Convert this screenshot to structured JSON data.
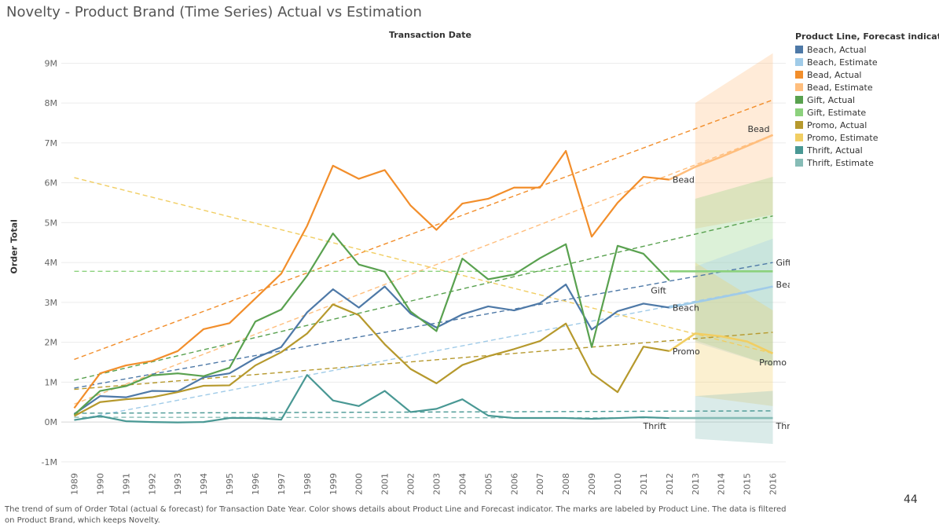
{
  "page": {
    "title": "Novelty - Product Brand (Time Series) Actual vs Estimation",
    "caption": "The trend of sum of Order Total (actual & forecast)  for Transaction Date Year.  Color shows details about Product Line and Forecast indicator.  The marks are labeled by Product Line. The data is filtered on Product Brand, which keeps Novelty.",
    "page_number": "44"
  },
  "chart_data": {
    "type": "line",
    "top_axis_title": "Transaction Date",
    "ylabel": "Order Total",
    "ylim": [
      -1.2,
      9.6
    ],
    "yticks": [
      -1,
      0,
      1,
      2,
      3,
      4,
      5,
      6,
      7,
      8,
      9
    ],
    "ytick_labels": [
      "-1M",
      "0M",
      "1M",
      "2M",
      "3M",
      "4M",
      "5M",
      "6M",
      "7M",
      "8M",
      "9M"
    ],
    "x": [
      1989,
      1990,
      1991,
      1992,
      1993,
      1994,
      1995,
      1996,
      1997,
      1998,
      1999,
      2000,
      2001,
      2002,
      2003,
      2004,
      2005,
      2006,
      2007,
      2008,
      2009,
      2010,
      2011,
      2012,
      2013,
      2014,
      2015,
      2016
    ],
    "xtick_labels": [
      "1989",
      "1990",
      "1991",
      "1992",
      "1993",
      "1994",
      "1995",
      "1996",
      "1997",
      "1998",
      "1999",
      "2000",
      "2001",
      "2002",
      "2003",
      "2004",
      "2005",
      "2006",
      "2007",
      "2008",
      "2009",
      "2010",
      "2011",
      "2012",
      "2013",
      "2014",
      "2015",
      "2016"
    ],
    "grid": true,
    "legend_title": "Product Line, Forecast indicator",
    "legend_position": "right",
    "series": [
      {
        "name": "Beach, Actual",
        "color": "#4e79a7",
        "x": [
          1989,
          1990,
          1991,
          1992,
          1993,
          1994,
          1995,
          1996,
          1997,
          1998,
          1999,
          2000,
          2001,
          2002,
          2003,
          2004,
          2005,
          2006,
          2007,
          2008,
          2009,
          2010,
          2011,
          2012
        ],
        "values": [
          0.2,
          0.65,
          0.62,
          0.78,
          0.77,
          1.12,
          1.22,
          1.6,
          1.88,
          2.75,
          3.33,
          2.87,
          3.4,
          2.72,
          2.37,
          2.7,
          2.9,
          2.8,
          2.98,
          3.45,
          2.32,
          2.78,
          2.97,
          2.87
        ]
      },
      {
        "name": "Beach, Estimate",
        "color": "#a0cbe8",
        "x": [
          2012,
          2013,
          2014,
          2015,
          2016
        ],
        "values": [
          2.87,
          3.0,
          3.13,
          3.26,
          3.4
        ]
      },
      {
        "name": "Bead, Actual",
        "color": "#f28e2b",
        "x": [
          1989,
          1990,
          1991,
          1992,
          1993,
          1994,
          1995,
          1996,
          1997,
          1998,
          1999,
          2000,
          2001,
          2002,
          2003,
          2004,
          2005,
          2006,
          2007,
          2008,
          2009,
          2010,
          2011,
          2012
        ],
        "values": [
          0.35,
          1.22,
          1.42,
          1.53,
          1.78,
          2.33,
          2.48,
          3.1,
          3.72,
          4.92,
          6.43,
          6.1,
          6.32,
          5.43,
          4.82,
          5.48,
          5.6,
          5.88,
          5.88,
          6.8,
          4.65,
          5.5,
          6.15,
          6.08
        ]
      },
      {
        "name": "Bead, Estimate",
        "color": "#ffbe7d",
        "x": [
          2012,
          2013,
          2014,
          2015,
          2016
        ],
        "values": [
          6.08,
          6.4,
          6.65,
          6.92,
          7.2
        ]
      },
      {
        "name": "Gift, Actual",
        "color": "#59a14f",
        "x": [
          1989,
          1990,
          1991,
          1992,
          1993,
          1994,
          1995,
          1996,
          1997,
          1998,
          1999,
          2000,
          2001,
          2002,
          2003,
          2004,
          2005,
          2006,
          2007,
          2008,
          2009,
          2010,
          2011,
          2012
        ],
        "values": [
          0.18,
          0.78,
          0.9,
          1.17,
          1.22,
          1.15,
          1.36,
          2.52,
          2.82,
          3.67,
          4.73,
          3.95,
          3.77,
          2.77,
          2.28,
          4.1,
          3.58,
          3.7,
          4.11,
          4.46,
          1.88,
          4.42,
          4.22,
          3.55
        ]
      },
      {
        "name": "Gift, Estimate",
        "color": "#8cd17d",
        "x": [
          2012,
          2013,
          2014,
          2015,
          2016
        ],
        "values": [
          3.78,
          3.78,
          3.78,
          3.78,
          3.78
        ]
      },
      {
        "name": "Promo, Actual",
        "color": "#b6992d",
        "x": [
          1989,
          1990,
          1991,
          1992,
          1993,
          1994,
          1995,
          1996,
          1997,
          1998,
          1999,
          2000,
          2001,
          2002,
          2003,
          2004,
          2005,
          2006,
          2007,
          2008,
          2009,
          2010,
          2011,
          2012
        ],
        "values": [
          0.15,
          0.5,
          0.57,
          0.62,
          0.75,
          0.91,
          0.92,
          1.42,
          1.75,
          2.22,
          2.95,
          2.68,
          1.95,
          1.33,
          0.97,
          1.43,
          1.65,
          1.83,
          2.03,
          2.47,
          1.22,
          0.75,
          1.89,
          1.78
        ]
      },
      {
        "name": "Promo, Estimate",
        "color": "#f1ce63",
        "x": [
          2012,
          2013,
          2014,
          2015,
          2016
        ],
        "values": [
          1.78,
          2.22,
          2.15,
          2.02,
          1.72
        ]
      },
      {
        "name": "Thrift, Actual",
        "color": "#499894",
        "x": [
          1989,
          1990,
          1991,
          1992,
          1993,
          1994,
          1995,
          1996,
          1997,
          1998,
          1999,
          2000,
          2001,
          2002,
          2003,
          2004,
          2005,
          2006,
          2007,
          2008,
          2009,
          2010,
          2011,
          2012
        ],
        "values": [
          0.05,
          0.15,
          0.02,
          0.0,
          -0.01,
          0.0,
          0.1,
          0.1,
          0.06,
          1.18,
          0.54,
          0.4,
          0.78,
          0.25,
          0.33,
          0.57,
          0.16,
          0.1,
          0.1,
          0.1,
          0.08,
          0.1,
          0.12,
          0.1
        ]
      },
      {
        "name": "Thrift, Estimate",
        "color": "#86bcb6",
        "x": [
          2012,
          2013,
          2014,
          2015,
          2016
        ],
        "values": [
          0.1,
          0.1,
          0.1,
          0.1,
          0.1
        ]
      }
    ],
    "forecast_bands": [
      {
        "color": "#ffbe7d",
        "x": [
          2013,
          2016
        ],
        "upper": [
          8.0,
          9.25
        ],
        "lower": [
          4.85,
          5.2
        ]
      },
      {
        "color": "#8cd17d",
        "x": [
          2013,
          2016
        ],
        "upper": [
          5.6,
          6.15
        ],
        "lower": [
          2.05,
          1.4
        ]
      },
      {
        "color": "#a0cbe8",
        "x": [
          2013,
          2016
        ],
        "upper": [
          3.9,
          4.6
        ],
        "lower": [
          2.0,
          1.4
        ]
      },
      {
        "color": "#f1ce63",
        "x": [
          2013,
          2016
        ],
        "upper": [
          4.0,
          2.8
        ],
        "lower": [
          0.65,
          0.4
        ]
      },
      {
        "color": "#86bcb6",
        "x": [
          2013,
          2016
        ],
        "upper": [
          0.65,
          0.78
        ],
        "lower": [
          -0.42,
          -0.55
        ]
      }
    ],
    "trend_lines": [
      {
        "color": "#f28e2b",
        "x": [
          1989,
          2016
        ],
        "values": [
          1.57,
          8.08
        ]
      },
      {
        "color": "#ffbe7d",
        "x": [
          1989,
          2016
        ],
        "values": [
          0.45,
          7.2
        ]
      },
      {
        "color": "#59a14f",
        "x": [
          1989,
          2016
        ],
        "values": [
          1.05,
          5.17
        ]
      },
      {
        "color": "#4e79a7",
        "x": [
          1989,
          2016
        ],
        "values": [
          0.85,
          4.0
        ]
      },
      {
        "color": "#a0cbe8",
        "x": [
          1989,
          2016
        ],
        "values": [
          0.05,
          3.4
        ]
      },
      {
        "color": "#f1ce63",
        "x": [
          1989,
          2016
        ],
        "values": [
          6.13,
          1.72
        ]
      },
      {
        "color": "#8cd17d",
        "x": [
          1989,
          2016
        ],
        "values": [
          3.78,
          3.78
        ]
      },
      {
        "color": "#b6992d",
        "x": [
          1989,
          2016
        ],
        "values": [
          0.82,
          2.25
        ]
      },
      {
        "color": "#499894",
        "x": [
          1989,
          2016
        ],
        "values": [
          0.22,
          0.28
        ]
      },
      {
        "color": "#86bcb6",
        "x": [
          1989,
          2016
        ],
        "values": [
          0.12,
          0.1
        ]
      }
    ],
    "mark_labels": [
      {
        "text": "Bead",
        "x": 2012,
        "y": 6.08,
        "anchor": "start"
      },
      {
        "text": "Gift",
        "x": 2012,
        "y": 3.3,
        "anchor": "end"
      },
      {
        "text": "Beach",
        "x": 2012,
        "y": 2.87,
        "anchor": "start"
      },
      {
        "text": "Promo",
        "x": 2012,
        "y": 1.78,
        "anchor": "start"
      },
      {
        "text": "Thrift",
        "x": 2012,
        "y": -0.1,
        "anchor": "end"
      },
      {
        "text": "Bead",
        "x": 2016,
        "y": 7.35,
        "anchor": "end"
      },
      {
        "text": "Gift",
        "x": 2016,
        "y": 4.0,
        "anchor": "start"
      },
      {
        "text": "Beach",
        "x": 2016,
        "y": 3.45,
        "anchor": "start"
      },
      {
        "text": "Promo",
        "x": 2016,
        "y": 1.5,
        "anchor": "middle"
      },
      {
        "text": "Thrift",
        "x": 2016,
        "y": -0.1,
        "anchor": "start"
      }
    ]
  }
}
